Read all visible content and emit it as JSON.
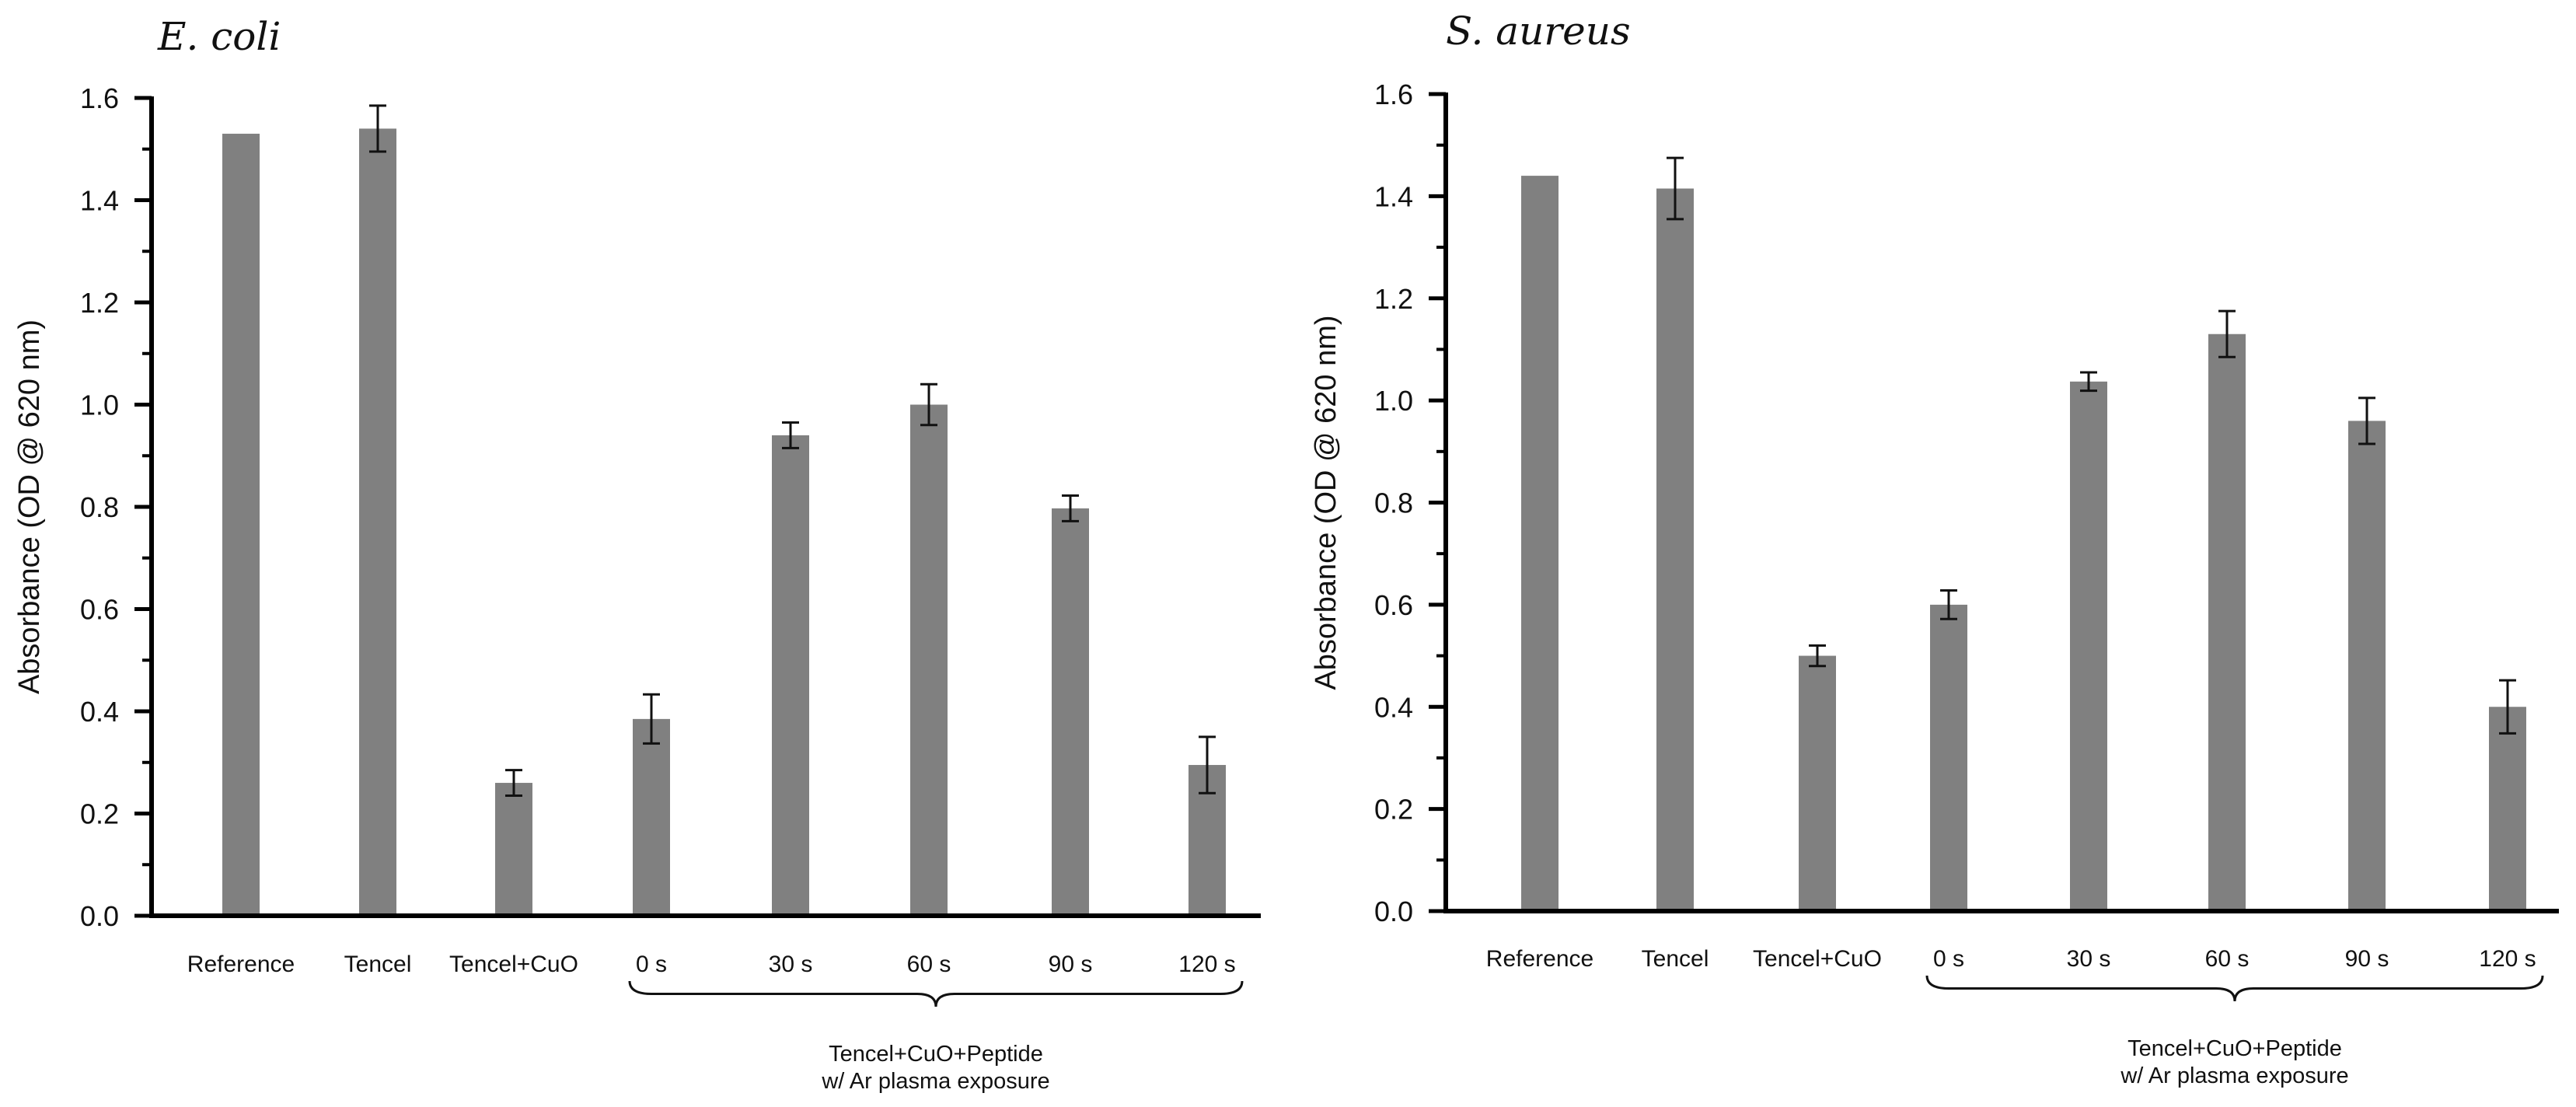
{
  "chart_data": [
    {
      "type": "bar",
      "title": "E. coli",
      "xlabel": "",
      "ylabel": "Absorbance (OD @ 620 nm)",
      "ylim": [
        0,
        1.6
      ],
      "yticks": [
        "0.0",
        "0.2",
        "0.4",
        "0.6",
        "0.8",
        "1.0",
        "1.2",
        "1.4",
        "1.6"
      ],
      "categories": [
        "Reference",
        "Tencel",
        "Tencel+CuO",
        "0 s",
        "30 s",
        "60 s",
        "90 s",
        "120 s"
      ],
      "values": [
        1.53,
        1.54,
        0.26,
        0.385,
        0.94,
        1.0,
        0.797,
        0.295
      ],
      "errors": [
        0,
        0.045,
        0.025,
        0.048,
        0.025,
        0.04,
        0.025,
        0.055
      ],
      "bar_color": "#808080",
      "group_bracket": {
        "from_category": 3,
        "to_category": 7,
        "label_line1": "Tencel+CuO+Peptide",
        "label_line2": "w/ Ar plasma exposure"
      }
    },
    {
      "type": "bar",
      "title": "S. aureus",
      "xlabel": "",
      "ylabel": "Absorbance (OD @ 620 nm)",
      "ylim": [
        0,
        1.6
      ],
      "yticks": [
        "0.0",
        "0.2",
        "0.4",
        "0.6",
        "0.8",
        "1.0",
        "1.2",
        "1.4",
        "1.6"
      ],
      "categories": [
        "Reference",
        "Tencel",
        "Tencel+CuO",
        "0 s",
        "30 s",
        "60 s",
        "90 s",
        "120 s"
      ],
      "values": [
        1.44,
        1.415,
        0.5,
        0.6,
        1.037,
        1.13,
        0.96,
        0.4
      ],
      "errors": [
        0,
        0.06,
        0.02,
        0.028,
        0.018,
        0.045,
        0.045,
        0.052
      ],
      "bar_color": "#808080",
      "group_bracket": {
        "from_category": 3,
        "to_category": 7,
        "label_line1": "Tencel+CuO+Peptide",
        "label_line2": "w/ Ar plasma exposure"
      }
    }
  ]
}
